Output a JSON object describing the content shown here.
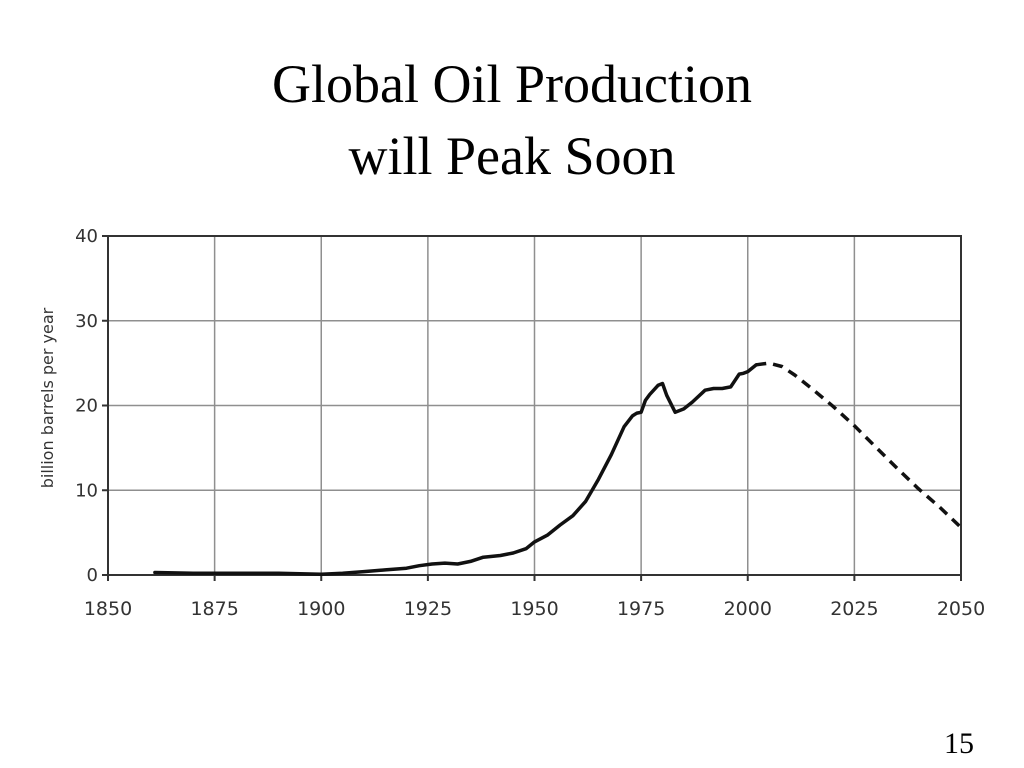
{
  "slide": {
    "title_line1": "Global Oil Production",
    "title_line2": "will Peak Soon",
    "page_number": "15"
  },
  "chart_data": {
    "type": "line",
    "xlabel": "",
    "ylabel": "billion barrels per year",
    "xlim": [
      1850,
      2050
    ],
    "ylim": [
      0,
      40
    ],
    "xticks": [
      1850,
      1875,
      1900,
      1925,
      1950,
      1975,
      2000,
      2025,
      2050
    ],
    "yticks": [
      0,
      10,
      20,
      30,
      40
    ],
    "grid": true,
    "legend": "none",
    "series": [
      {
        "style": "solid",
        "color": "#111111",
        "x": [
          1861,
          1870,
          1880,
          1890,
          1900,
          1905,
          1910,
          1915,
          1920,
          1923,
          1926,
          1929,
          1932,
          1935,
          1938,
          1940,
          1942,
          1945,
          1948,
          1950,
          1953,
          1956,
          1959,
          1962,
          1965,
          1968,
          1971,
          1973,
          1974,
          1975,
          1976,
          1977,
          1979,
          1980,
          1981,
          1983,
          1985,
          1987,
          1990,
          1992,
          1994,
          1996,
          1998,
          1999,
          2000,
          2002
        ],
        "y": [
          0.3,
          0.2,
          0.2,
          0.2,
          0.1,
          0.2,
          0.4,
          0.6,
          0.8,
          1.1,
          1.3,
          1.4,
          1.3,
          1.6,
          2.1,
          2.2,
          2.3,
          2.6,
          3.1,
          3.9,
          4.7,
          5.9,
          7.0,
          8.7,
          11.3,
          14.2,
          17.5,
          18.8,
          19.1,
          19.2,
          20.6,
          21.3,
          22.4,
          22.6,
          21.2,
          19.2,
          19.6,
          20.4,
          21.8,
          22.0,
          22.0,
          22.2,
          23.7,
          23.8,
          24.0,
          24.8
        ]
      },
      {
        "style": "dashed",
        "color": "#111111",
        "x": [
          2002,
          2005,
          2008,
          2011,
          2015,
          2020,
          2025,
          2030,
          2035,
          2040,
          2045,
          2050
        ],
        "y": [
          24.8,
          25.0,
          24.6,
          23.6,
          22.0,
          19.9,
          17.6,
          15.1,
          12.6,
          10.2,
          8.0,
          5.6
        ]
      }
    ]
  }
}
